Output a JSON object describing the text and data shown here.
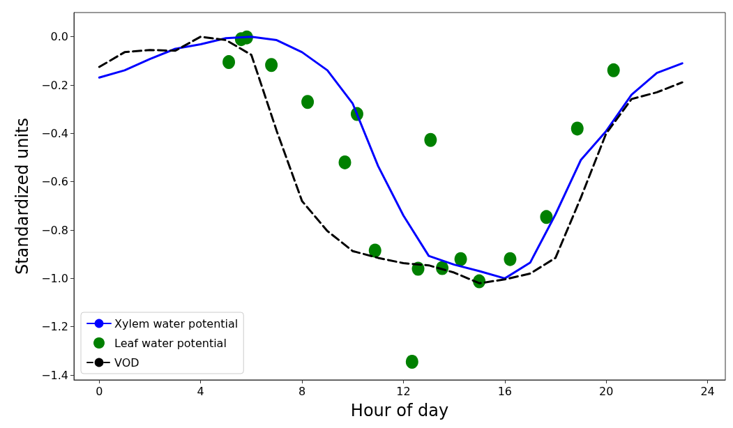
{
  "chart_data": {
    "type": "line",
    "xlabel": "Hour of day",
    "ylabel": "Standardized units",
    "xlim": [
      -1,
      24.7
    ],
    "ylim": [
      -1.42,
      0.1
    ],
    "xticks": [
      0,
      4,
      8,
      12,
      16,
      20,
      24
    ],
    "yticks": [
      {
        "value": 0,
        "label": "0.0"
      },
      {
        "value": -0.2,
        "label": "−0.2"
      },
      {
        "value": -0.4,
        "label": "−0.4"
      },
      {
        "value": -0.6,
        "label": "−0.6"
      },
      {
        "value": -0.8,
        "label": "−0.8"
      },
      {
        "value": -1.0,
        "label": "−1.0"
      },
      {
        "value": -1.2,
        "label": "−1.2"
      },
      {
        "value": -1.4,
        "label": "−1.4"
      }
    ],
    "grid": false,
    "legend": "bottom left",
    "series": [
      {
        "name": "Xylem water potential",
        "color": "#0000ff",
        "line_style": "solid",
        "marker": "none",
        "x": [
          0,
          1,
          2,
          3,
          4,
          5,
          6,
          7,
          8,
          9,
          10,
          11,
          12,
          13,
          14,
          15,
          16,
          17,
          18,
          19,
          20,
          21,
          22,
          23
        ],
        "values": [
          -0.169,
          -0.139,
          -0.092,
          -0.05,
          -0.031,
          -0.006,
          0.0,
          -0.014,
          -0.064,
          -0.139,
          -0.277,
          -0.535,
          -0.74,
          -0.907,
          -0.943,
          -0.97,
          -1.0,
          -0.935,
          -0.735,
          -0.51,
          -0.39,
          -0.24,
          -0.15,
          -0.11
        ]
      },
      {
        "name": "Leaf water potential",
        "type": "scatter",
        "color": "#008000",
        "marker": "circle",
        "x": [
          5.11,
          5.6,
          5.82,
          6.79,
          8.22,
          9.69,
          10.17,
          10.88,
          12.34,
          12.58,
          13.07,
          13.53,
          14.26,
          14.99,
          16.21,
          17.64,
          18.86,
          20.29
        ],
        "values": [
          -0.105,
          -0.01,
          -0.003,
          -0.117,
          -0.27,
          -0.52,
          -0.32,
          -0.885,
          -1.345,
          -0.96,
          -0.427,
          -0.957,
          -0.92,
          -1.012,
          -0.92,
          -0.746,
          -0.38,
          -0.139
        ]
      },
      {
        "name": "VOD",
        "color": "#000000",
        "line_style": "dashed",
        "marker": "none",
        "x": [
          0,
          1,
          2,
          3,
          4,
          5,
          6,
          7,
          8,
          9,
          10,
          11,
          12,
          13,
          14,
          15,
          16,
          17,
          18,
          19,
          20,
          21,
          22,
          23
        ],
        "values": [
          -0.125,
          -0.064,
          -0.055,
          -0.058,
          0.0,
          -0.014,
          -0.075,
          -0.39,
          -0.68,
          -0.804,
          -0.887,
          -0.915,
          -0.937,
          -0.946,
          -0.976,
          -1.02,
          -1.004,
          -0.98,
          -0.915,
          -0.666,
          -0.4,
          -0.258,
          -0.23,
          -0.189
        ]
      }
    ]
  }
}
